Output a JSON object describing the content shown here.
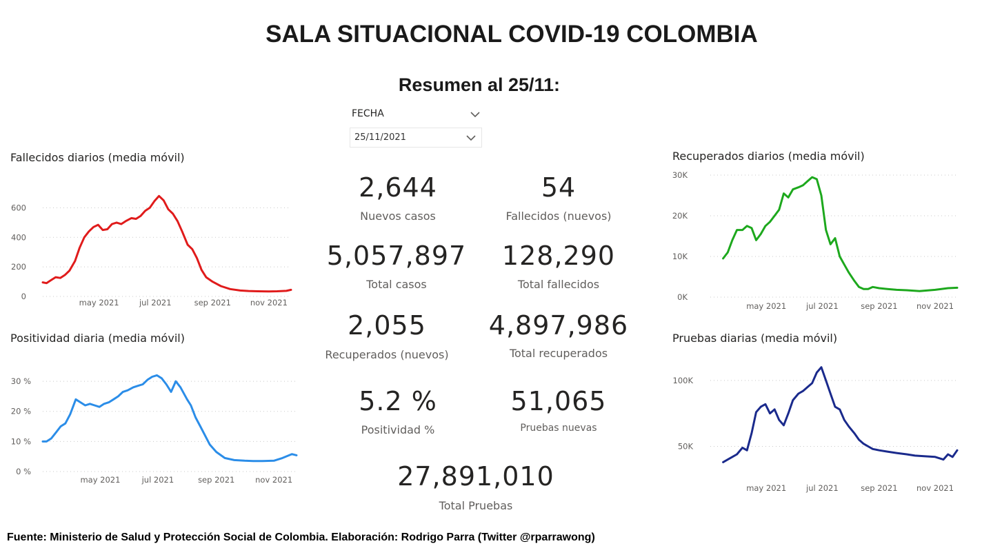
{
  "header": {
    "title": "SALA SITUACIONAL COVID-19 COLOMBIA",
    "subtitle": "Resumen al 25/11:"
  },
  "slicer": {
    "label": "FECHA",
    "value": "25/11/2021",
    "icon": "chevron-down-icon"
  },
  "cards": [
    {
      "id": "nuevos-casos",
      "value": "2,644",
      "label": "Nuevos casos"
    },
    {
      "id": "fallecidos-nuevos",
      "value": "54",
      "label": "Fallecidos (nuevos)"
    },
    {
      "id": "total-casos",
      "value": "5,057,897",
      "label": "Total casos"
    },
    {
      "id": "total-fallecidos",
      "value": "128,290",
      "label": "Total fallecidos"
    },
    {
      "id": "recuperados-nuevos",
      "value": "2,055",
      "label": "Recuperados (nuevos)"
    },
    {
      "id": "total-recuperados",
      "value": "4,897,986",
      "label": "Total recuperados"
    },
    {
      "id": "positividad",
      "value": "5.2 %",
      "label": "Positividad %"
    },
    {
      "id": "pruebas-nuevas",
      "value": "51,065",
      "label": "Pruebas nuevas"
    },
    {
      "id": "total-pruebas",
      "value": "27,891,010",
      "label": "Total Pruebas"
    }
  ],
  "footer": "Fuente: Ministerio de Salud y Protección Social de Colombia. Elaboración: Rodrigo Parra (Twitter @rparrawong)",
  "chart_data": [
    {
      "id": "fallecidos",
      "type": "line",
      "title": "Fallecidos diarios (media móvil)",
      "color": "#e01b1b",
      "xlim": [
        "2021-03-01",
        "2021-11-25"
      ],
      "x_ticks": [
        {
          "x": "2021-05-01",
          "label": "may 2021"
        },
        {
          "x": "2021-07-01",
          "label": "jul 2021"
        },
        {
          "x": "2021-09-01",
          "label": "sep 2021"
        },
        {
          "x": "2021-11-01",
          "label": "nov 2021"
        }
      ],
      "ylim": [
        0,
        700
      ],
      "y_ticks": [
        {
          "y": 0,
          "label": "0"
        },
        {
          "y": 200,
          "label": "200"
        },
        {
          "y": 400,
          "label": "400"
        },
        {
          "y": 600,
          "label": "600"
        }
      ],
      "grid": true,
      "x": [
        "2021-03-01",
        "2021-03-05",
        "2021-03-10",
        "2021-03-15",
        "2021-03-20",
        "2021-03-25",
        "2021-03-30",
        "2021-04-05",
        "2021-04-10",
        "2021-04-15",
        "2021-04-20",
        "2021-04-25",
        "2021-04-30",
        "2021-05-05",
        "2021-05-10",
        "2021-05-15",
        "2021-05-20",
        "2021-05-25",
        "2021-05-30",
        "2021-06-05",
        "2021-06-10",
        "2021-06-15",
        "2021-06-20",
        "2021-06-25",
        "2021-06-30",
        "2021-07-05",
        "2021-07-10",
        "2021-07-15",
        "2021-07-20",
        "2021-07-25",
        "2021-07-30",
        "2021-08-05",
        "2021-08-10",
        "2021-08-15",
        "2021-08-20",
        "2021-08-25",
        "2021-09-01",
        "2021-09-10",
        "2021-09-20",
        "2021-10-01",
        "2021-10-10",
        "2021-10-20",
        "2021-11-01",
        "2021-11-10",
        "2021-11-20",
        "2021-11-25"
      ],
      "y": [
        95,
        90,
        110,
        130,
        125,
        145,
        175,
        240,
        330,
        400,
        440,
        470,
        485,
        450,
        455,
        490,
        500,
        490,
        510,
        530,
        525,
        545,
        580,
        600,
        645,
        680,
        650,
        590,
        560,
        510,
        440,
        350,
        320,
        260,
        180,
        130,
        100,
        70,
        50,
        40,
        37,
        35,
        34,
        35,
        38,
        45
      ]
    },
    {
      "id": "positividad",
      "type": "line",
      "title": "Positividad diaria (media móvil)",
      "color": "#2b8de8",
      "xlim": [
        "2021-03-01",
        "2021-11-25"
      ],
      "x_ticks": [
        {
          "x": "2021-05-01",
          "label": "may 2021"
        },
        {
          "x": "2021-07-01",
          "label": "jul 2021"
        },
        {
          "x": "2021-09-01",
          "label": "sep 2021"
        },
        {
          "x": "2021-11-01",
          "label": "nov 2021"
        }
      ],
      "ylim": [
        0,
        33
      ],
      "y_ticks": [
        {
          "y": 0,
          "label": "0 %"
        },
        {
          "y": 10,
          "label": "10 %"
        },
        {
          "y": 20,
          "label": "20 %"
        },
        {
          "y": 30,
          "label": "30 %"
        }
      ],
      "grid": true,
      "x": [
        "2021-03-01",
        "2021-03-05",
        "2021-03-10",
        "2021-03-15",
        "2021-03-20",
        "2021-03-25",
        "2021-03-30",
        "2021-04-05",
        "2021-04-10",
        "2021-04-15",
        "2021-04-20",
        "2021-04-25",
        "2021-04-30",
        "2021-05-05",
        "2021-05-10",
        "2021-05-15",
        "2021-05-20",
        "2021-05-25",
        "2021-05-30",
        "2021-06-05",
        "2021-06-10",
        "2021-06-15",
        "2021-06-20",
        "2021-06-25",
        "2021-06-30",
        "2021-07-05",
        "2021-07-10",
        "2021-07-15",
        "2021-07-20",
        "2021-07-25",
        "2021-08-01",
        "2021-08-05",
        "2021-08-10",
        "2021-08-15",
        "2021-08-20",
        "2021-08-25",
        "2021-09-01",
        "2021-09-10",
        "2021-09-20",
        "2021-10-01",
        "2021-10-10",
        "2021-10-20",
        "2021-11-01",
        "2021-11-10",
        "2021-11-20",
        "2021-11-25"
      ],
      "y": [
        10,
        10,
        11,
        13,
        15,
        16,
        19,
        24,
        23,
        22,
        22.5,
        22,
        21.5,
        22.5,
        23,
        24,
        25,
        26.5,
        27,
        28,
        28.5,
        29,
        30.5,
        31.5,
        32,
        31,
        29,
        26.5,
        30,
        28,
        24,
        22,
        18,
        15,
        12,
        9,
        6.5,
        4.5,
        3.8,
        3.6,
        3.5,
        3.5,
        3.6,
        4.5,
        5.8,
        5.4
      ]
    },
    {
      "id": "recuperados",
      "type": "line",
      "title": "Recuperados diarios (media móvil)",
      "color": "#1da81d",
      "xlim": [
        "2021-03-01",
        "2021-11-25"
      ],
      "x_ticks": [
        {
          "x": "2021-05-01",
          "label": "may 2021"
        },
        {
          "x": "2021-07-01",
          "label": "jul 2021"
        },
        {
          "x": "2021-09-01",
          "label": "sep 2021"
        },
        {
          "x": "2021-11-01",
          "label": "nov 2021"
        }
      ],
      "ylim": [
        0,
        30000
      ],
      "y_ticks": [
        {
          "y": 0,
          "label": "0K"
        },
        {
          "y": 10000,
          "label": "10K"
        },
        {
          "y": 20000,
          "label": "20K"
        },
        {
          "y": 30000,
          "label": "30K"
        }
      ],
      "grid": true,
      "x": [
        "2021-03-15",
        "2021-03-20",
        "2021-03-25",
        "2021-03-30",
        "2021-04-05",
        "2021-04-10",
        "2021-04-15",
        "2021-04-20",
        "2021-04-25",
        "2021-04-30",
        "2021-05-05",
        "2021-05-10",
        "2021-05-15",
        "2021-05-20",
        "2021-05-25",
        "2021-05-30",
        "2021-06-05",
        "2021-06-10",
        "2021-06-15",
        "2021-06-20",
        "2021-06-25",
        "2021-06-30",
        "2021-07-05",
        "2021-07-10",
        "2021-07-15",
        "2021-07-20",
        "2021-07-25",
        "2021-07-30",
        "2021-08-05",
        "2021-08-10",
        "2021-08-15",
        "2021-08-20",
        "2021-08-25",
        "2021-09-01",
        "2021-09-10",
        "2021-09-20",
        "2021-10-01",
        "2021-10-15",
        "2021-11-01",
        "2021-11-15",
        "2021-11-25"
      ],
      "y": [
        9500,
        11000,
        14000,
        16500,
        16500,
        17500,
        17000,
        14000,
        15500,
        17500,
        18500,
        20000,
        21500,
        25500,
        24500,
        26500,
        27000,
        27500,
        28500,
        29500,
        29000,
        25000,
        16500,
        13000,
        14500,
        10000,
        8000,
        6000,
        4000,
        2500,
        2000,
        2000,
        2500,
        2200,
        2000,
        1800,
        1700,
        1500,
        1800,
        2200,
        2300
      ]
    },
    {
      "id": "pruebas",
      "type": "line",
      "title": "Pruebas diarias (media móvil)",
      "color": "#1a2a8c",
      "xlim": [
        "2021-03-01",
        "2021-11-25"
      ],
      "x_ticks": [
        {
          "x": "2021-05-01",
          "label": "may 2021"
        },
        {
          "x": "2021-07-01",
          "label": "jul 2021"
        },
        {
          "x": "2021-09-01",
          "label": "sep 2021"
        },
        {
          "x": "2021-11-01",
          "label": "nov 2021"
        }
      ],
      "ylim": [
        33000,
        113000
      ],
      "y_ticks": [
        {
          "y": 50000,
          "label": "50K"
        },
        {
          "y": 100000,
          "label": "100K"
        }
      ],
      "grid": true,
      "x": [
        "2021-03-15",
        "2021-03-20",
        "2021-03-25",
        "2021-03-30",
        "2021-04-05",
        "2021-04-10",
        "2021-04-15",
        "2021-04-20",
        "2021-04-25",
        "2021-04-30",
        "2021-05-05",
        "2021-05-10",
        "2021-05-15",
        "2021-05-20",
        "2021-05-25",
        "2021-05-30",
        "2021-06-05",
        "2021-06-10",
        "2021-06-15",
        "2021-06-20",
        "2021-06-25",
        "2021-06-30",
        "2021-07-05",
        "2021-07-10",
        "2021-07-15",
        "2021-07-20",
        "2021-07-25",
        "2021-07-30",
        "2021-08-05",
        "2021-08-10",
        "2021-08-15",
        "2021-08-20",
        "2021-08-25",
        "2021-09-01",
        "2021-09-10",
        "2021-09-20",
        "2021-10-01",
        "2021-10-10",
        "2021-10-20",
        "2021-11-01",
        "2021-11-10",
        "2021-11-15",
        "2021-11-20",
        "2021-11-25"
      ],
      "y": [
        38000,
        40000,
        42000,
        44000,
        49000,
        47000,
        60000,
        76000,
        80000,
        82000,
        75000,
        78000,
        70000,
        66000,
        75000,
        85000,
        90000,
        92000,
        95000,
        98000,
        106000,
        110000,
        100000,
        90000,
        80000,
        78000,
        70000,
        65000,
        60000,
        55000,
        52000,
        50000,
        48000,
        47000,
        46000,
        45000,
        44000,
        43000,
        42500,
        42000,
        40000,
        44000,
        42000,
        47000
      ]
    }
  ]
}
